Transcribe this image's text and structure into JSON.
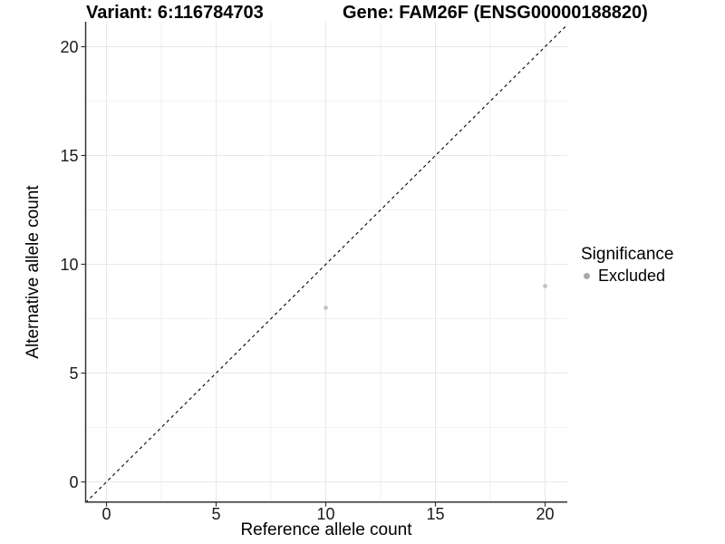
{
  "titles": {
    "variant": "Variant: 6:116784703",
    "gene": "Gene: FAM26F (ENSG00000188820)"
  },
  "legend": {
    "title": "Significance",
    "items": [
      {
        "label": "Excluded",
        "color": "#a8a8a8"
      }
    ]
  },
  "colors": {
    "background": "#ffffff",
    "grid_major": "#e7e7e7",
    "grid_minor": "#f2f2f2",
    "axis_line": "#333333",
    "tick_mark": "#333333",
    "tick_text": "#1a1a1a",
    "reference_line": "#000000"
  },
  "chart_data": {
    "type": "scatter",
    "title_left": "Variant: 6:116784703",
    "title_right": "Gene: FAM26F (ENSG00000188820)",
    "xlabel": "Reference allele count",
    "ylabel": "Alternative allele count",
    "xlim": [
      -0.95,
      21.0
    ],
    "ylim": [
      -0.92,
      21.15
    ],
    "x_ticks": [
      0,
      5,
      10,
      15,
      20
    ],
    "y_ticks": [
      0,
      5,
      10,
      15,
      20
    ],
    "minor_grid_step": 2.5,
    "grid": true,
    "legend_position": "right",
    "legend_title": "Significance",
    "reference_line": {
      "type": "identity",
      "slope": 1,
      "intercept": 0,
      "style": "dashed"
    },
    "series": [
      {
        "name": "Excluded",
        "color": "#c2c2c2",
        "points": [
          [
            10,
            8
          ],
          [
            20,
            9
          ]
        ]
      }
    ]
  }
}
